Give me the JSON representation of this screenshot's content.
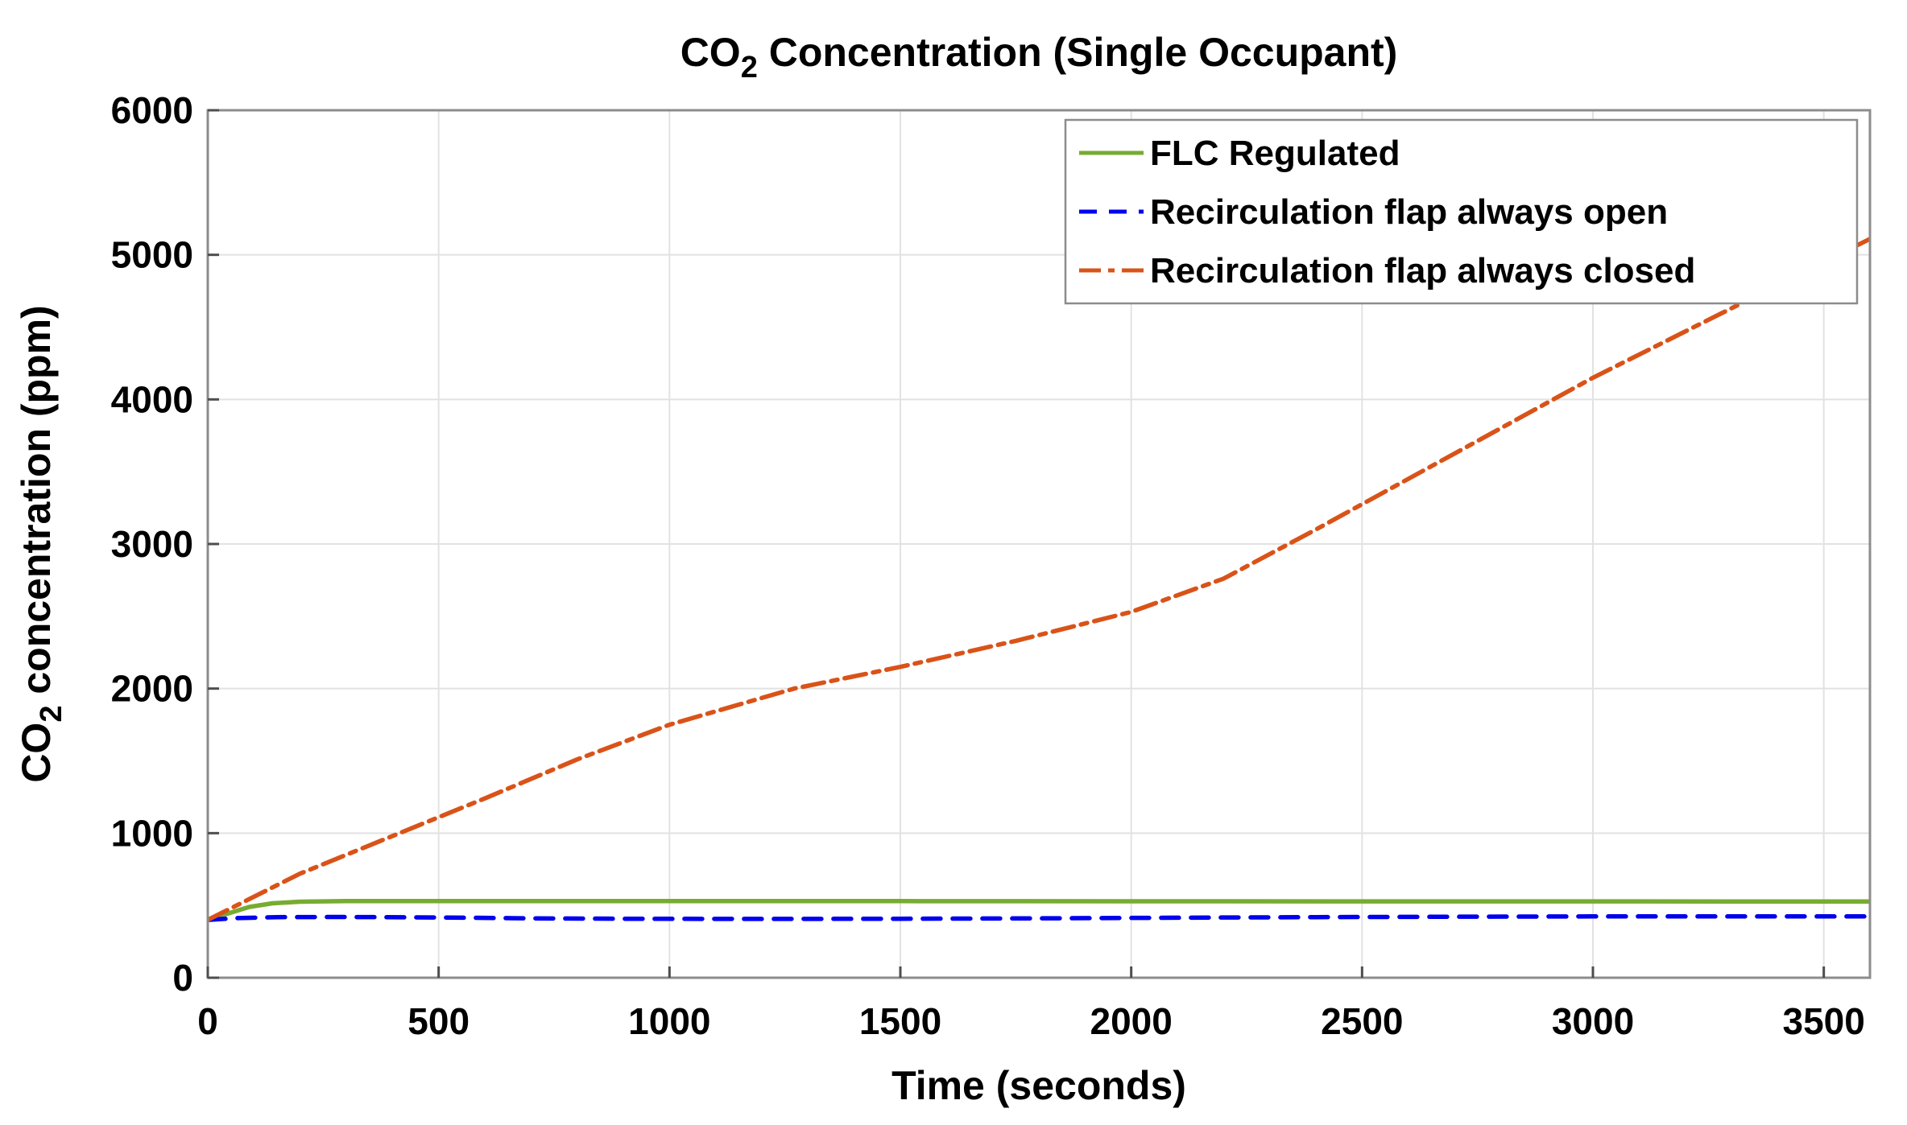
{
  "chart_data": {
    "type": "line",
    "title": {
      "prefix": "CO",
      "subscript": "2",
      "suffix": " Concentration (Single Occupant)"
    },
    "xlabel": "Time (seconds)",
    "ylabel": {
      "prefix": "CO",
      "subscript": "2",
      "suffix": " concentration (ppm)"
    },
    "xlim": [
      0,
      3600
    ],
    "ylim": [
      0,
      6000
    ],
    "xticks": [
      0,
      500,
      1000,
      1500,
      2000,
      2500,
      3000,
      3500
    ],
    "yticks": [
      0,
      1000,
      2000,
      3000,
      4000,
      5000,
      6000
    ],
    "grid": true,
    "colors": {
      "axis_box": "#8C8C8C",
      "grid_line": "#E2E2E2",
      "tick_mark": "#4D4D4D",
      "text": "#000000",
      "background": "#FFFFFF"
    },
    "legend": {
      "position": "top-right",
      "border_color": "#8C8C8C",
      "background": "#FFFFFF"
    },
    "series": [
      {
        "name": "FLC Regulated",
        "color": "#77AC30",
        "line_style": "solid",
        "points": [
          [
            0,
            400
          ],
          [
            40,
            440
          ],
          [
            90,
            490
          ],
          [
            140,
            515
          ],
          [
            200,
            526
          ],
          [
            300,
            530
          ],
          [
            600,
            530
          ],
          [
            1000,
            530
          ],
          [
            1500,
            530
          ],
          [
            2000,
            529
          ],
          [
            2500,
            528
          ],
          [
            3000,
            528
          ],
          [
            3600,
            527
          ]
        ]
      },
      {
        "name": "Recirculation flap always open",
        "color": "#0000EE",
        "line_style": "dashed",
        "points": [
          [
            0,
            400
          ],
          [
            60,
            412
          ],
          [
            150,
            419
          ],
          [
            300,
            420
          ],
          [
            500,
            417
          ],
          [
            700,
            411
          ],
          [
            900,
            408
          ],
          [
            1200,
            407
          ],
          [
            1500,
            408
          ],
          [
            1800,
            411
          ],
          [
            2100,
            415
          ],
          [
            2400,
            419
          ],
          [
            2700,
            422
          ],
          [
            3000,
            424
          ],
          [
            3300,
            424
          ],
          [
            3600,
            424
          ]
        ]
      },
      {
        "name": "Recirculation flap always closed",
        "color": "#D95319",
        "line_style": "dash-dot",
        "points": [
          [
            0,
            400
          ],
          [
            200,
            720
          ],
          [
            400,
            980
          ],
          [
            600,
            1240
          ],
          [
            800,
            1510
          ],
          [
            1000,
            1750
          ],
          [
            1270,
            2000
          ],
          [
            1500,
            2150
          ],
          [
            1750,
            2330
          ],
          [
            2000,
            2530
          ],
          [
            2200,
            2760
          ],
          [
            2400,
            3100
          ],
          [
            2600,
            3450
          ],
          [
            2800,
            3800
          ],
          [
            3000,
            4150
          ],
          [
            3300,
            4630
          ],
          [
            3600,
            5110
          ]
        ]
      }
    ]
  }
}
